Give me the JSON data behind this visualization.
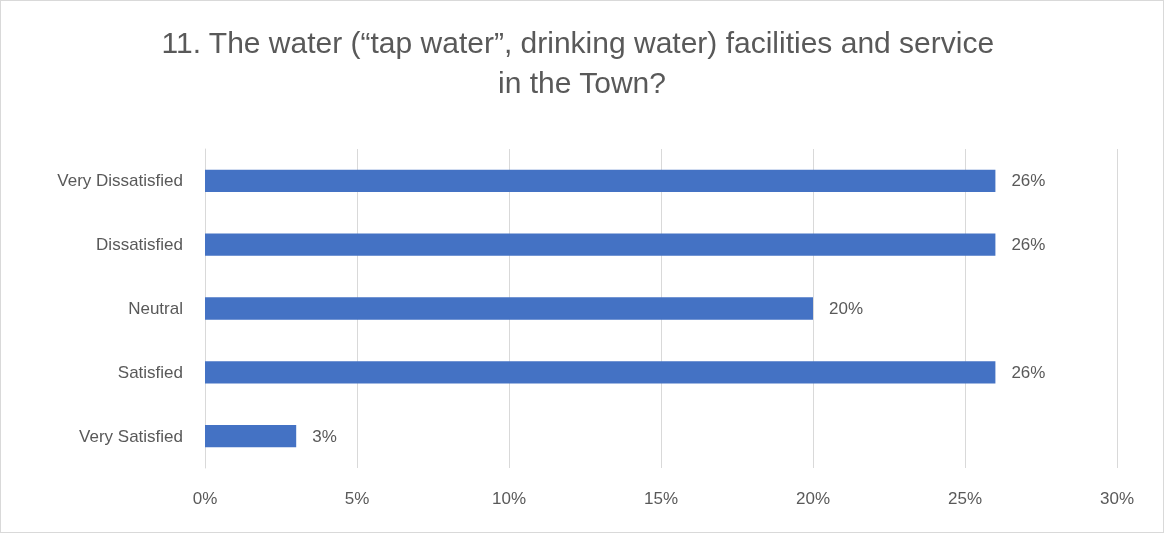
{
  "chart_data": {
    "type": "bar",
    "orientation": "horizontal",
    "title": "11. The water (“tap water”, drinking water) facilities and service in the Town?",
    "categories": [
      "Very Dissatisfied",
      "Dissatisfied",
      "Neutral",
      "Satisfied",
      "Very Satisfied"
    ],
    "values": [
      26,
      26,
      20,
      26,
      3
    ],
    "value_labels": [
      "26%",
      "26%",
      "20%",
      "26%",
      "3%"
    ],
    "color": "#4472c4",
    "xlim": [
      0,
      30
    ],
    "xticks": [
      {
        "value": 0,
        "label": "0%"
      },
      {
        "value": 5,
        "label": "5%"
      },
      {
        "value": 10,
        "label": "10%"
      },
      {
        "value": 15,
        "label": "15%"
      },
      {
        "value": 20,
        "label": "20%"
      },
      {
        "value": 25,
        "label": "25%"
      },
      {
        "value": 30,
        "label": "30%"
      }
    ],
    "grid": "x"
  }
}
